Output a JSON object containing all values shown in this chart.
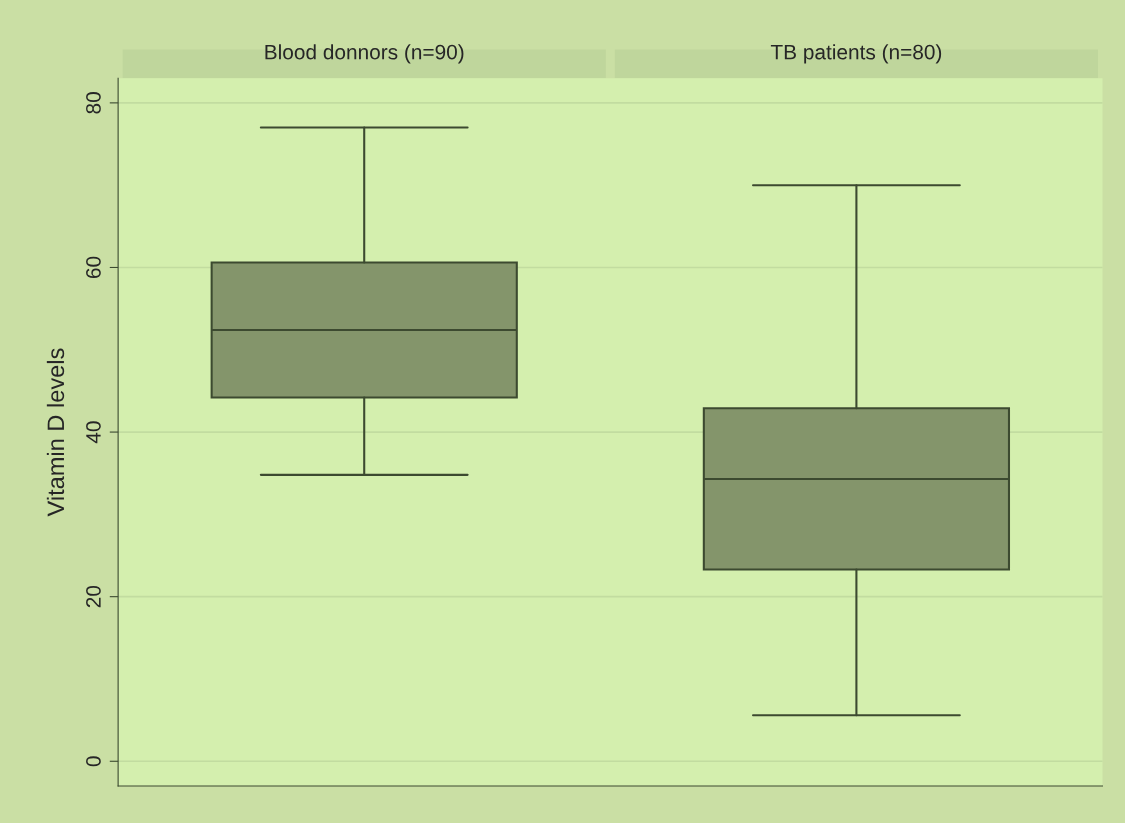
{
  "chart_data": {
    "type": "box",
    "ylabel": "Vitamin D levels",
    "categories": [
      "Blood donnors (n=90)",
      "TB patients (n=80)"
    ],
    "color": "#84956b",
    "boxes": [
      {
        "low": 34.8,
        "q1": 44.2,
        "median": 52.4,
        "q3": 60.6,
        "high": 77
      },
      {
        "low": 5.6,
        "q1": 23.3,
        "median": 34.3,
        "q3": 42.9,
        "high": 70
      }
    ],
    "ylim": [
      -3,
      83
    ],
    "yticks": [
      0,
      20,
      40,
      60,
      80
    ],
    "grid": "y"
  }
}
